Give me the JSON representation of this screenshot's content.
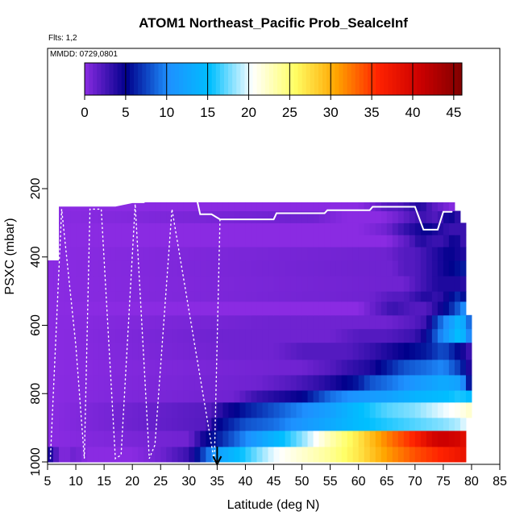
{
  "chart_data": {
    "type": "heatmap",
    "title": "ATOM1 Northeast_Pacific Prob_SealceInf",
    "flights_label": "Flts: 1,2",
    "mmdd_label": "MMDD: 0729,0801",
    "xlabel": "Latitude (deg N)",
    "ylabel": "PSXC (mbar)",
    "xlim": [
      5,
      85
    ],
    "ylim": [
      1000,
      100
    ],
    "xticks": [
      5,
      10,
      15,
      20,
      25,
      30,
      35,
      40,
      45,
      50,
      55,
      60,
      65,
      70,
      75,
      80,
      85
    ],
    "yticks": [
      200,
      400,
      600,
      800,
      1000
    ],
    "colorbar": {
      "range": [
        0,
        46
      ],
      "ticks": [
        0,
        5,
        10,
        15,
        20,
        25,
        30,
        35,
        40,
        45
      ],
      "colors": [
        "#8a2be2",
        "#00008b",
        "#1e90ff",
        "#00bfff",
        "#ffffff",
        "#ffff66",
        "#ffa500",
        "#ff2200",
        "#cc0000",
        "#800000"
      ]
    },
    "background_value": 0,
    "domain_top": [
      [
        5,
        265
      ],
      [
        6.5,
        265
      ],
      [
        7,
        250
      ],
      [
        9,
        250
      ],
      [
        12,
        250
      ],
      [
        13.5,
        250
      ],
      [
        15.5,
        250
      ],
      [
        17,
        250
      ],
      [
        20,
        240
      ],
      [
        22,
        240
      ],
      [
        24,
        240
      ],
      [
        26,
        240
      ],
      [
        26.5,
        170
      ],
      [
        30,
        170
      ],
      [
        31,
        170
      ],
      [
        32,
        240
      ],
      [
        62,
        240
      ],
      [
        68,
        240
      ],
      [
        72,
        240
      ],
      [
        74,
        240
      ],
      [
        77,
        240
      ],
      [
        77.5,
        265
      ]
    ],
    "domain_right": [
      [
        265,
        77.5
      ],
      [
        285,
        78.5
      ],
      [
        460,
        79
      ],
      [
        560,
        79.5
      ],
      [
        750,
        80
      ],
      [
        960,
        79.2
      ],
      [
        1000,
        79
      ]
    ],
    "domain_left": [
      [
        420,
        5
      ],
      [
        1000,
        5
      ]
    ],
    "layers": [
      {
        "p_top": 955,
        "p_bot": 1000,
        "x": [
          5,
          6,
          7,
          8,
          9,
          10,
          12,
          20,
          25,
          30,
          35,
          40,
          45,
          50,
          55,
          60,
          65,
          70,
          75,
          79
        ],
        "v": [
          5,
          3,
          1,
          0,
          1,
          1,
          0,
          0,
          1,
          3,
          12,
          16,
          20,
          22,
          24,
          27,
          31,
          34,
          36,
          38
        ]
      },
      {
        "p_top": 908,
        "p_bot": 955,
        "x": [
          5,
          30,
          33,
          35,
          40,
          45,
          50,
          55,
          60,
          65,
          70,
          73,
          75,
          78,
          79
        ],
        "v": [
          0,
          1,
          5,
          6,
          10,
          14,
          18,
          23,
          27,
          32,
          36,
          40,
          41,
          40,
          38
        ]
      },
      {
        "p_top": 870,
        "p_bot": 908,
        "x": [
          5,
          33,
          35,
          40,
          45,
          50,
          55,
          60,
          65,
          70,
          75,
          78,
          79.5
        ],
        "v": [
          0,
          2,
          5,
          8,
          9,
          11,
          13,
          15,
          16,
          17,
          18,
          19,
          21
        ]
      },
      {
        "p_top": 825,
        "p_bot": 870,
        "x": [
          5,
          34,
          36,
          40,
          45,
          50,
          55,
          60,
          65,
          70,
          75,
          78,
          79.5
        ],
        "v": [
          0,
          2,
          4,
          6,
          8,
          10,
          12,
          15,
          17,
          18,
          20,
          21,
          22
        ]
      },
      {
        "p_top": 790,
        "p_bot": 825,
        "x": [
          5,
          38,
          42,
          46,
          50,
          55,
          60,
          65,
          70,
          75,
          78,
          79.5
        ],
        "v": [
          0,
          1,
          3,
          4,
          5,
          9,
          11,
          12,
          14,
          15,
          16,
          15
        ]
      },
      {
        "p_top": 745,
        "p_bot": 790,
        "x": [
          5,
          42,
          48,
          52,
          55,
          60,
          62,
          65,
          70,
          75,
          78,
          79.5
        ],
        "v": [
          0,
          1,
          2,
          3,
          4,
          6,
          8,
          9,
          11,
          13,
          12,
          6
        ]
      },
      {
        "p_top": 700,
        "p_bot": 745,
        "x": [
          5,
          50,
          55,
          58,
          62,
          65,
          68,
          72,
          75,
          78,
          79.5
        ],
        "v": [
          0,
          1,
          2,
          3,
          4,
          6,
          8,
          9,
          10,
          7,
          4
        ]
      },
      {
        "p_top": 650,
        "p_bot": 700,
        "x": [
          5,
          38,
          45,
          50,
          58,
          62,
          65,
          68,
          72,
          75,
          78,
          79.5
        ],
        "v": [
          0,
          1,
          1,
          2,
          2,
          3,
          4,
          5,
          6,
          8,
          5,
          3
        ]
      },
      {
        "p_top": 610,
        "p_bot": 650,
        "x": [
          5,
          35,
          45,
          55,
          60,
          65,
          70,
          72,
          74,
          76,
          78,
          79.5
        ],
        "v": [
          0,
          1,
          1,
          1,
          2,
          2,
          3,
          5,
          9,
          12,
          16,
          10
        ]
      },
      {
        "p_top": 570,
        "p_bot": 610,
        "x": [
          5,
          45,
          55,
          60,
          65,
          70,
          72,
          74,
          76,
          78,
          79.5
        ],
        "v": [
          0,
          1,
          1,
          1,
          1,
          2,
          3,
          8,
          11,
          15,
          9
        ]
      },
      {
        "p_top": 530,
        "p_bot": 570,
        "x": [
          5,
          60,
          66,
          70,
          72,
          74,
          76,
          78,
          79.5
        ],
        "v": [
          0,
          0,
          3,
          2,
          2,
          4,
          6,
          9,
          12
        ]
      },
      {
        "p_top": 500,
        "p_bot": 530,
        "x": [
          5,
          62,
          66,
          68,
          70,
          72,
          74,
          76,
          78,
          79.5
        ],
        "v": [
          0,
          1,
          2,
          2,
          3,
          4,
          3,
          5,
          7,
          3
        ]
      },
      {
        "p_top": 455,
        "p_bot": 500,
        "x": [
          5,
          66,
          68,
          70,
          72,
          74,
          76,
          78,
          79.5
        ],
        "v": [
          0,
          1,
          1,
          2,
          3,
          4,
          4,
          4,
          3
        ]
      },
      {
        "p_top": 410,
        "p_bot": 455,
        "x": [
          5,
          60,
          66,
          68,
          70,
          72,
          74,
          76,
          78.5
        ],
        "v": [
          0,
          1,
          1,
          2,
          2,
          3,
          4,
          5,
          6
        ]
      },
      {
        "p_top": 370,
        "p_bot": 410,
        "x": [
          5,
          65,
          68,
          70,
          72,
          74,
          76,
          78.5
        ],
        "v": [
          0,
          1,
          2,
          2,
          3,
          4,
          5,
          4
        ]
      },
      {
        "p_top": 335,
        "p_bot": 370,
        "x": [
          5,
          62,
          65,
          67,
          69,
          71,
          73,
          75,
          77,
          78.5
        ],
        "v": [
          0,
          0,
          0,
          1,
          2,
          4,
          3,
          3,
          5,
          3
        ]
      },
      {
        "p_top": 300,
        "p_bot": 335,
        "x": [
          5,
          50,
          60,
          65,
          68,
          70,
          72,
          74,
          76,
          78.5
        ],
        "v": [
          0,
          0,
          0,
          1,
          3,
          4,
          5,
          4,
          3,
          3
        ]
      },
      {
        "p_top": 265,
        "p_bot": 300,
        "x": [
          5,
          48,
          52,
          58,
          64,
          67,
          69,
          71,
          74,
          76,
          78
        ],
        "v": [
          0,
          1,
          1,
          0,
          0,
          1,
          2,
          3,
          2,
          5,
          3
        ]
      },
      {
        "p_top": 240,
        "p_bot": 265,
        "x": [
          5,
          60,
          63,
          65,
          67,
          69,
          71,
          73,
          75,
          77
        ],
        "v": [
          0,
          0,
          1,
          2,
          2,
          3,
          4,
          2,
          1,
          0
        ]
      }
    ],
    "profile_top": [
      [
        7,
        250
      ],
      [
        9,
        250
      ],
      [
        12,
        250
      ],
      [
        13.5,
        250
      ],
      [
        15.5,
        250
      ],
      [
        17,
        250
      ],
      [
        20,
        240
      ],
      [
        22,
        240
      ],
      [
        26.5,
        200
      ],
      [
        31,
        200
      ],
      [
        32,
        275
      ],
      [
        34,
        275
      ],
      [
        35.5,
        290
      ],
      [
        45,
        290
      ],
      [
        45.5,
        272
      ],
      [
        54,
        272
      ],
      [
        54.5,
        263
      ],
      [
        62,
        263
      ],
      [
        62.5,
        253
      ],
      [
        70,
        253
      ],
      [
        71.5,
        320
      ],
      [
        74,
        320
      ],
      [
        75,
        268
      ],
      [
        76.5,
        268
      ]
    ],
    "profile_bottom": [
      [
        5.5,
        990
      ],
      [
        7.5,
        260
      ],
      [
        10,
        660
      ],
      [
        11.5,
        990
      ],
      [
        12.5,
        260
      ],
      [
        14.5,
        260
      ],
      [
        17,
        990
      ],
      [
        18,
        980
      ],
      [
        20.5,
        245
      ],
      [
        23,
        990
      ],
      [
        24,
        950
      ],
      [
        27,
        260
      ],
      [
        34.5,
        1000
      ],
      [
        35.5,
        290
      ]
    ],
    "arrow_lat": 35
  }
}
